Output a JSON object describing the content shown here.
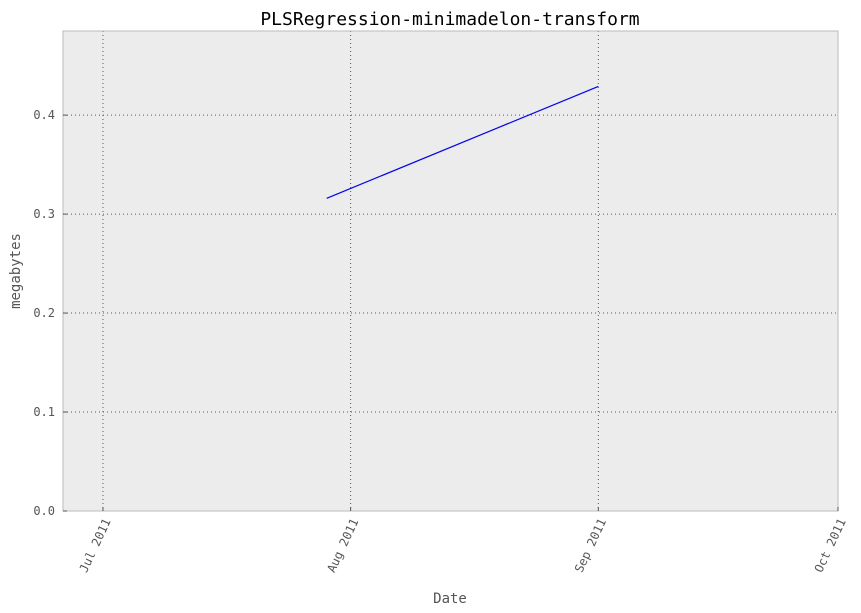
{
  "chart_data": {
    "type": "line",
    "title": "PLSRegression-minimadelon-transform",
    "xlabel": "Date",
    "ylabel": "megabytes",
    "x_axis_type": "date",
    "xlim": [
      "2011-06-26",
      "2011-10-01"
    ],
    "ylim": [
      0,
      0.485
    ],
    "grid": true,
    "legend": "none",
    "x_ticks": [
      {
        "date": "2011-07-01",
        "label": "Jul 2011"
      },
      {
        "date": "2011-08-01",
        "label": "Aug 2011"
      },
      {
        "date": "2011-09-01",
        "label": "Sep 2011"
      },
      {
        "date": "2011-10-01",
        "label": "Oct 2011"
      }
    ],
    "y_ticks": [
      {
        "value": 0.0,
        "label": "0.0"
      },
      {
        "value": 0.1,
        "label": "0.1"
      },
      {
        "value": 0.2,
        "label": "0.2"
      },
      {
        "value": 0.3,
        "label": "0.3"
      },
      {
        "value": 0.4,
        "label": "0.4"
      }
    ],
    "series": [
      {
        "color": "#0000ff",
        "points": [
          {
            "x": "2011-07-29",
            "y": 0.316
          },
          {
            "x": "2011-09-01",
            "y": 0.429
          }
        ]
      }
    ],
    "colors": {
      "plot_background": "#ececec",
      "grid": "#555555",
      "frame": "#bbbbbb"
    }
  }
}
